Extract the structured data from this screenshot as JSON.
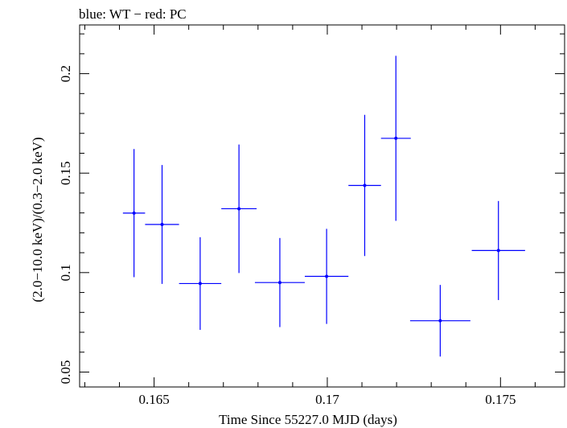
{
  "chart_data": {
    "type": "scatter",
    "title": "blue: WT − red: PC",
    "xlabel": "Time Since 55227.0 MJD (days)",
    "ylabel": "(2.0−10.0 keV)/(0.3−2.0 keV)",
    "xlim": [
      0.16285,
      0.17685
    ],
    "ylim": [
      0.0425,
      0.2245
    ],
    "x_ticks": [
      {
        "value": 0.165,
        "label": "0.165"
      },
      {
        "value": 0.17,
        "label": "0.17"
      },
      {
        "value": 0.175,
        "label": "0.175"
      }
    ],
    "y_ticks": [
      {
        "value": 0.05,
        "label": "0.05"
      },
      {
        "value": 0.1,
        "label": "0.1"
      },
      {
        "value": 0.15,
        "label": "0.15"
      },
      {
        "value": 0.2,
        "label": "0.2"
      }
    ],
    "grid": false,
    "series": [
      {
        "color": "#0000ff",
        "points": [
          {
            "x": 0.16442,
            "xerr": 0.00032,
            "y": 0.1299,
            "yerr": 0.0322
          },
          {
            "x": 0.16523,
            "xerr": 0.00049,
            "y": 0.1242,
            "yerr": 0.0299
          },
          {
            "x": 0.16633,
            "xerr": 0.00061,
            "y": 0.0945,
            "yerr": 0.0233
          },
          {
            "x": 0.16745,
            "xerr": 0.00051,
            "y": 0.1321,
            "yerr": 0.0323
          },
          {
            "x": 0.16863,
            "xerr": 0.00072,
            "y": 0.095,
            "yerr": 0.0224
          },
          {
            "x": 0.16998,
            "xerr": 0.00063,
            "y": 0.0981,
            "yerr": 0.0239
          },
          {
            "x": 0.17108,
            "xerr": 0.00047,
            "y": 0.1438,
            "yerr": 0.0355
          },
          {
            "x": 0.17198,
            "xerr": 0.00043,
            "y": 0.1675,
            "yerr": 0.0415
          },
          {
            "x": 0.17326,
            "xerr": 0.00087,
            "y": 0.0758,
            "yerr": 0.018
          },
          {
            "x": 0.17494,
            "xerr": 0.00077,
            "y": 0.1111,
            "yerr": 0.0249
          }
        ]
      }
    ]
  }
}
